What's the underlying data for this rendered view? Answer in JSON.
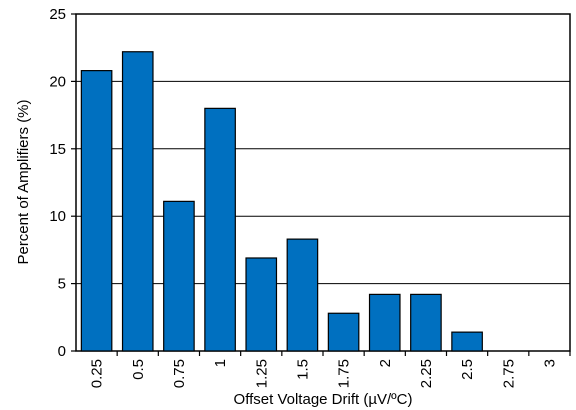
{
  "chart_data": {
    "type": "bar",
    "title": "",
    "xlabel": "Offset Voltage Drift (µV/ºC)",
    "ylabel": "Percent of Amplifiers (%)",
    "categories": [
      "0.25",
      "0.5",
      "0.75",
      "1",
      "1.25",
      "1.5",
      "1.75",
      "2",
      "2.25",
      "2.5",
      "2.75",
      "3"
    ],
    "values": [
      20.8,
      22.2,
      11.1,
      18.0,
      6.9,
      8.3,
      2.8,
      4.2,
      4.2,
      1.4,
      0,
      0
    ],
    "ylim": [
      0,
      25
    ],
    "yticks": [
      "0",
      "5",
      "10",
      "15",
      "20",
      "25"
    ],
    "grid": "horizontal",
    "legend": "none",
    "colors": {
      "bar_fill": "#0070C0",
      "bar_stroke": "#000000",
      "grid": "#000000",
      "background": "#ffffff"
    }
  }
}
